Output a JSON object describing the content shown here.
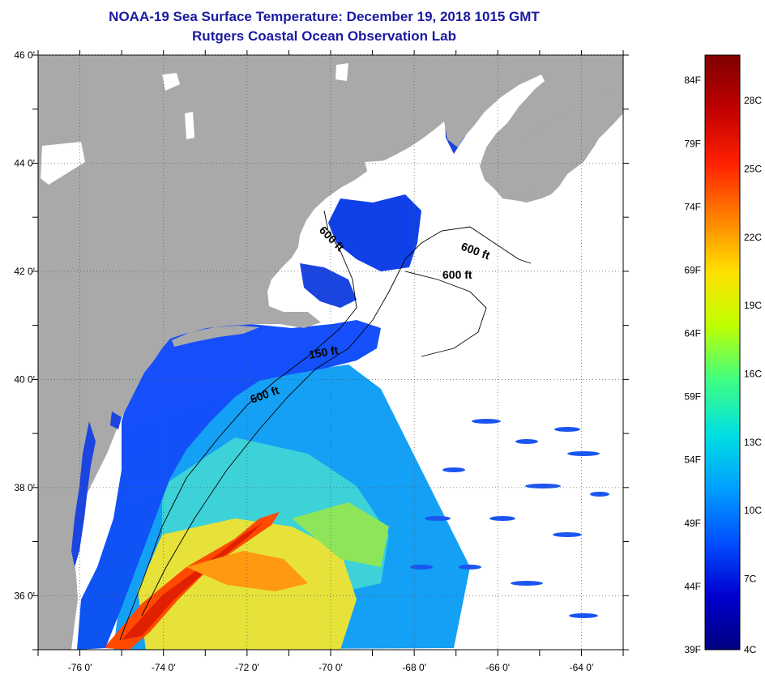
{
  "title": {
    "line1": "NOAA-19 Sea Surface Temperature:  December 19, 2018 1015 GMT",
    "line2": "Rutgers Coastal Ocean Observation Lab"
  },
  "axes": {
    "lon_labels": [
      "-76 0'",
      "-74 0'",
      "-72 0'",
      "-70 0'",
      "-68 0'",
      "-66 0'",
      "-64 0'"
    ],
    "lat_labels": [
      "46 0'",
      "44 0'",
      "42 0'",
      "40 0'",
      "38 0'",
      "36 0'"
    ],
    "lon_values": [
      -76,
      -74,
      -72,
      -70,
      -68,
      -66,
      -64
    ],
    "lat_values": [
      46,
      44,
      42,
      40,
      38,
      36
    ],
    "lon_range": [
      -77,
      -63
    ],
    "lat_range": [
      35,
      46
    ],
    "grid": "dotted"
  },
  "isobaths": [
    "600 ft",
    "600 ft",
    "600 ft",
    "150 ft",
    "600 ft"
  ],
  "colorbar": {
    "fahrenheit": [
      "84F",
      "79F",
      "74F",
      "69F",
      "64F",
      "59F",
      "54F",
      "49F",
      "44F",
      "39F"
    ],
    "celsius": [
      "28C",
      "25C",
      "22C",
      "19C",
      "16C",
      "13C",
      "10C",
      "7C",
      "4C"
    ],
    "colors": [
      "#000080",
      "#0000d0",
      "#0050ff",
      "#00a0ff",
      "#00e0e0",
      "#40ff80",
      "#c0ff00",
      "#ffe000",
      "#ff8000",
      "#ff2000",
      "#c00000",
      "#800000"
    ]
  },
  "colors": {
    "land": "#a9a9a9",
    "cloud": "#ffffff",
    "title": "#1a1aa0"
  }
}
